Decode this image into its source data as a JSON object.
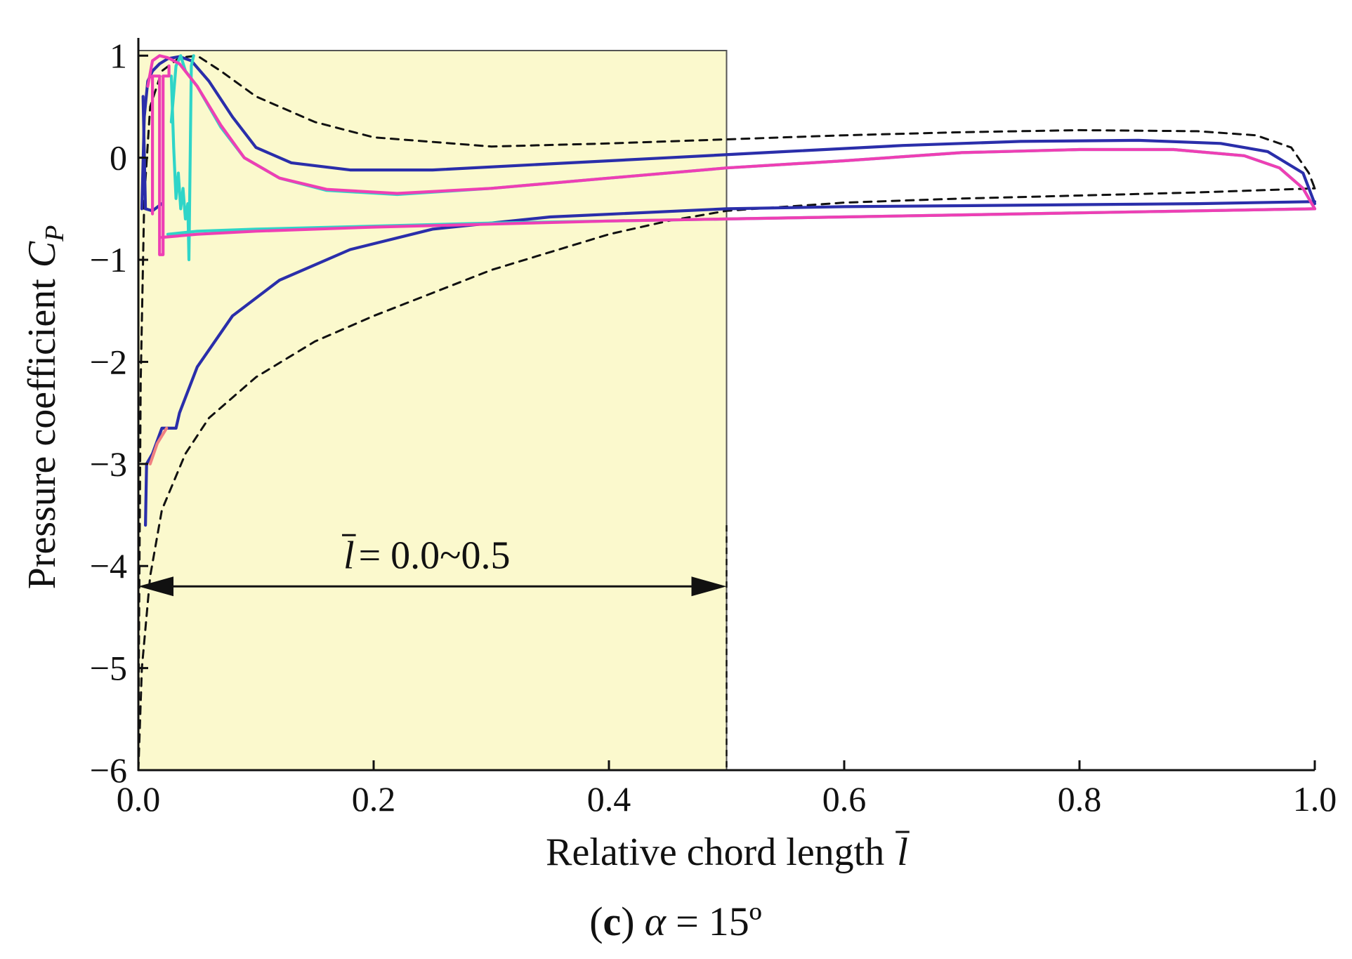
{
  "chart_data": {
    "type": "line",
    "caption": {
      "paren_open": "(",
      "label": "c",
      "paren_close": ")",
      "alpha_symbol": "α",
      "equals": "=",
      "alpha_value": "15º"
    },
    "xlabel": {
      "text": "Relative chord length",
      "symbol": "l"
    },
    "ylabel": {
      "text": "Pressure coefficient",
      "symbol": "C",
      "subscript": "P"
    },
    "xlim": [
      0,
      1.0
    ],
    "ylim": [
      -6,
      1.05
    ],
    "xticks": [
      0.0,
      0.2,
      0.4,
      0.6,
      0.8,
      1.0
    ],
    "xtick_labels": [
      "0.0",
      "0.2",
      "0.4",
      "0.6",
      "0.8",
      "1.0"
    ],
    "yticks": [
      1,
      0,
      -1,
      -2,
      -3,
      -4,
      -5,
      -6
    ],
    "ytick_labels": [
      "1",
      "0",
      "−1",
      "−2",
      "−3",
      "−4",
      "−5",
      "−6"
    ],
    "highlight_region": {
      "x0": 0.0,
      "x1": 0.5,
      "color": "#fbf9cd"
    },
    "annotation": {
      "symbol": "l",
      "text": "= 0.0~0.5",
      "y": -4.2,
      "x0": 0.0,
      "x1": 0.5
    },
    "colors": {
      "dashed": "#111111",
      "navy": "#2a2eaa",
      "cyan": "#2fd5c8",
      "magenta": "#ee3fb4"
    },
    "series": [
      {
        "name": "dashed-upper",
        "color": "#111111",
        "dashed": true,
        "points": [
          [
            0.0,
            -6.0
          ],
          [
            0.0005,
            -4.8
          ],
          [
            0.002,
            -2.2
          ],
          [
            0.005,
            -0.4
          ],
          [
            0.01,
            0.5
          ],
          [
            0.02,
            0.85
          ],
          [
            0.035,
            0.98
          ],
          [
            0.05,
            1.0
          ],
          [
            0.07,
            0.85
          ],
          [
            0.1,
            0.6
          ],
          [
            0.15,
            0.35
          ],
          [
            0.2,
            0.2
          ],
          [
            0.3,
            0.11
          ],
          [
            0.4,
            0.14
          ],
          [
            0.5,
            0.18
          ],
          [
            0.6,
            0.22
          ],
          [
            0.7,
            0.25
          ],
          [
            0.8,
            0.27
          ],
          [
            0.9,
            0.26
          ],
          [
            0.95,
            0.22
          ],
          [
            0.98,
            0.1
          ],
          [
            0.995,
            -0.15
          ],
          [
            1.0,
            -0.3
          ]
        ]
      },
      {
        "name": "dashed-lower",
        "color": "#111111",
        "dashed": true,
        "points": [
          [
            0.0,
            -6.0
          ],
          [
            0.003,
            -5.0
          ],
          [
            0.01,
            -4.1
          ],
          [
            0.02,
            -3.45
          ],
          [
            0.04,
            -2.9
          ],
          [
            0.06,
            -2.55
          ],
          [
            0.1,
            -2.15
          ],
          [
            0.15,
            -1.8
          ],
          [
            0.2,
            -1.55
          ],
          [
            0.3,
            -1.1
          ],
          [
            0.4,
            -0.75
          ],
          [
            0.45,
            -0.62
          ],
          [
            0.5,
            -0.52
          ],
          [
            0.6,
            -0.44
          ],
          [
            0.7,
            -0.4
          ],
          [
            0.8,
            -0.37
          ],
          [
            0.9,
            -0.34
          ],
          [
            1.0,
            -0.3
          ]
        ]
      },
      {
        "name": "navy-upper",
        "color": "#2a2eaa",
        "dashed": false,
        "points": [
          [
            0.003,
            -0.5
          ],
          [
            0.005,
            0.4
          ],
          [
            0.008,
            0.75
          ],
          [
            0.012,
            0.85
          ],
          [
            0.018,
            0.92
          ],
          [
            0.025,
            0.97
          ],
          [
            0.035,
            0.99
          ],
          [
            0.045,
            0.95
          ],
          [
            0.06,
            0.75
          ],
          [
            0.08,
            0.4
          ],
          [
            0.1,
            0.1
          ],
          [
            0.13,
            -0.05
          ],
          [
            0.18,
            -0.12
          ],
          [
            0.25,
            -0.12
          ],
          [
            0.35,
            -0.06
          ],
          [
            0.45,
            0.0
          ],
          [
            0.55,
            0.06
          ],
          [
            0.65,
            0.12
          ],
          [
            0.75,
            0.16
          ],
          [
            0.85,
            0.17
          ],
          [
            0.92,
            0.14
          ],
          [
            0.96,
            0.06
          ],
          [
            0.99,
            -0.15
          ],
          [
            1.0,
            -0.45
          ]
        ]
      },
      {
        "name": "navy-lower",
        "color": "#2a2eaa",
        "dashed": false,
        "points": [
          [
            0.006,
            -3.6
          ],
          [
            0.007,
            -3.0
          ],
          [
            0.012,
            -2.9
          ],
          [
            0.02,
            -2.65
          ],
          [
            0.032,
            -2.65
          ],
          [
            0.035,
            -2.5
          ],
          [
            0.05,
            -2.05
          ],
          [
            0.08,
            -1.55
          ],
          [
            0.12,
            -1.2
          ],
          [
            0.18,
            -0.9
          ],
          [
            0.25,
            -0.7
          ],
          [
            0.35,
            -0.58
          ],
          [
            0.5,
            -0.5
          ],
          [
            0.6,
            -0.48
          ],
          [
            0.7,
            -0.47
          ],
          [
            0.8,
            -0.46
          ],
          [
            0.9,
            -0.45
          ],
          [
            1.0,
            -0.43
          ]
        ]
      },
      {
        "name": "navy-le-spike",
        "color": "#2a2eaa",
        "dashed": false,
        "points": [
          [
            0.004,
            0.6
          ],
          [
            0.006,
            -0.5
          ],
          [
            0.012,
            -0.52
          ],
          [
            0.02,
            -0.45
          ]
        ]
      },
      {
        "name": "cyan-upper",
        "color": "#2fd5c8",
        "dashed": false,
        "points": [
          [
            0.028,
            0.35
          ],
          [
            0.032,
            0.9
          ],
          [
            0.036,
            1.0
          ],
          [
            0.04,
            0.85
          ],
          [
            0.05,
            0.7
          ],
          [
            0.07,
            0.3
          ],
          [
            0.09,
            0.0
          ],
          [
            0.12,
            -0.2
          ],
          [
            0.16,
            -0.32
          ],
          [
            0.22,
            -0.36
          ],
          [
            0.3,
            -0.3
          ],
          [
            0.4,
            -0.2
          ],
          [
            0.5,
            -0.1
          ],
          [
            0.6,
            -0.03
          ],
          [
            0.7,
            0.05
          ],
          [
            0.8,
            0.08
          ],
          [
            0.88,
            0.08
          ],
          [
            0.94,
            0.02
          ],
          [
            0.97,
            -0.1
          ],
          [
            0.99,
            -0.3
          ],
          [
            1.0,
            -0.5
          ]
        ]
      },
      {
        "name": "cyan-lower",
        "color": "#2fd5c8",
        "dashed": false,
        "points": [
          [
            0.025,
            -0.75
          ],
          [
            0.05,
            -0.72
          ],
          [
            0.1,
            -0.7
          ],
          [
            0.2,
            -0.67
          ],
          [
            0.3,
            -0.64
          ],
          [
            0.4,
            -0.62
          ],
          [
            0.5,
            -0.6
          ],
          [
            0.6,
            -0.58
          ],
          [
            0.7,
            -0.56
          ],
          [
            0.8,
            -0.54
          ],
          [
            0.9,
            -0.52
          ],
          [
            1.0,
            -0.5
          ]
        ]
      },
      {
        "name": "cyan-oscillation",
        "color": "#2fd5c8",
        "dashed": false,
        "points": [
          [
            0.028,
            0.8
          ],
          [
            0.03,
            0.1
          ],
          [
            0.032,
            -0.4
          ],
          [
            0.034,
            -0.15
          ],
          [
            0.036,
            -0.5
          ],
          [
            0.038,
            -0.3
          ],
          [
            0.04,
            -0.6
          ],
          [
            0.042,
            -0.45
          ],
          [
            0.043,
            -1.0
          ],
          [
            0.045,
            0.9
          ],
          [
            0.047,
            1.0
          ]
        ]
      },
      {
        "name": "magenta-upper",
        "color": "#ee3fb4",
        "dashed": false,
        "points": [
          [
            0.008,
            0.7
          ],
          [
            0.012,
            0.95
          ],
          [
            0.018,
            1.0
          ],
          [
            0.025,
            0.98
          ],
          [
            0.035,
            0.92
          ],
          [
            0.05,
            0.7
          ],
          [
            0.07,
            0.32
          ],
          [
            0.09,
            0.0
          ],
          [
            0.12,
            -0.2
          ],
          [
            0.16,
            -0.31
          ],
          [
            0.22,
            -0.35
          ],
          [
            0.3,
            -0.3
          ],
          [
            0.4,
            -0.2
          ],
          [
            0.5,
            -0.1
          ],
          [
            0.6,
            -0.03
          ],
          [
            0.7,
            0.05
          ],
          [
            0.8,
            0.08
          ],
          [
            0.88,
            0.08
          ],
          [
            0.94,
            0.02
          ],
          [
            0.97,
            -0.1
          ],
          [
            0.99,
            -0.3
          ],
          [
            1.0,
            -0.5
          ]
        ]
      },
      {
        "name": "magenta-lower",
        "color": "#ee3fb4",
        "dashed": false,
        "points": [
          [
            0.02,
            -0.78
          ],
          [
            0.05,
            -0.75
          ],
          [
            0.1,
            -0.72
          ],
          [
            0.2,
            -0.68
          ],
          [
            0.3,
            -0.65
          ],
          [
            0.4,
            -0.62
          ],
          [
            0.5,
            -0.6
          ],
          [
            0.6,
            -0.58
          ],
          [
            0.7,
            -0.56
          ],
          [
            0.8,
            -0.54
          ],
          [
            0.9,
            -0.52
          ],
          [
            1.0,
            -0.5
          ]
        ]
      },
      {
        "name": "magenta-le-steps",
        "color": "#ee3fb4",
        "dashed": false,
        "points": [
          [
            0.012,
            -0.55
          ],
          [
            0.012,
            0.8
          ],
          [
            0.018,
            0.8
          ],
          [
            0.018,
            -0.95
          ],
          [
            0.021,
            -0.95
          ],
          [
            0.021,
            0.8
          ],
          [
            0.026,
            0.8
          ],
          [
            0.026,
            0.9
          ]
        ]
      },
      {
        "name": "salmon-le",
        "color": "#f08080",
        "dashed": false,
        "points": [
          [
            0.01,
            -3.0
          ],
          [
            0.016,
            -2.8
          ],
          [
            0.024,
            -2.65
          ]
        ]
      }
    ]
  }
}
